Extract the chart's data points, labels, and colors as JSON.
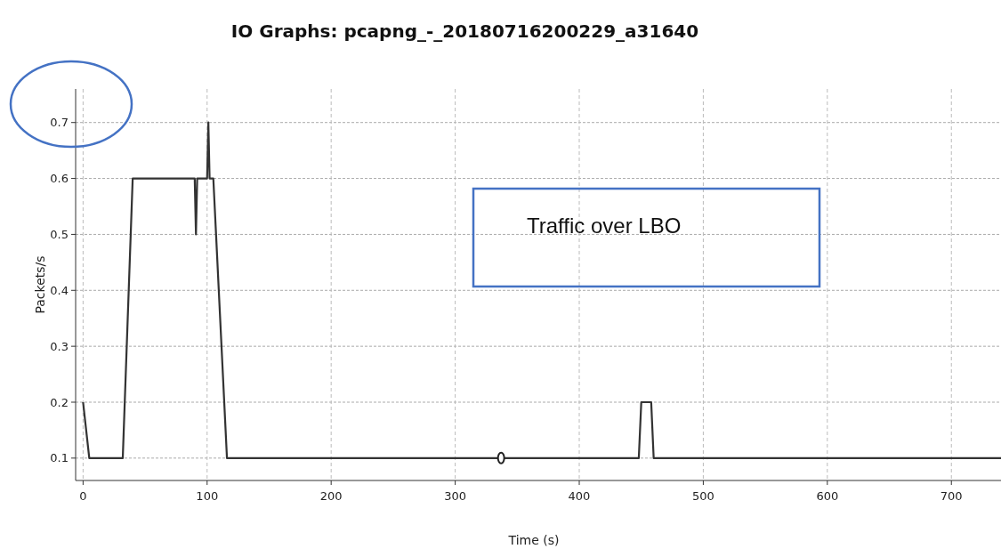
{
  "chart_data": {
    "type": "line",
    "title": "IO Graphs: pcapng_-_20180716200229_a31640",
    "xlabel": "Time (s)",
    "ylabel": "Packets/s",
    "x": [
      0,
      5,
      32,
      40,
      90,
      91,
      92,
      100,
      101,
      102,
      105,
      116,
      448,
      450,
      458,
      460,
      740
    ],
    "series": [
      {
        "color": "#333333",
        "values": [
          0.2,
          0.1,
          0.1,
          0.6,
          0.6,
          0.5,
          0.6,
          0.6,
          0.7,
          0.6,
          0.6,
          0.1,
          0.1,
          0.2,
          0.2,
          0.1,
          0.1
        ]
      }
    ],
    "xlim": [
      -6,
      740
    ],
    "xticks": [
      0,
      100,
      200,
      300,
      400,
      500,
      600,
      700
    ],
    "ylim": [
      0.06,
      0.76
    ],
    "yticks": [
      0.1,
      0.2,
      0.3,
      0.4,
      0.5,
      0.6,
      0.7
    ],
    "grid": true,
    "marker": "none",
    "line_style": "solid",
    "annotations": [
      "Traffic over LBO"
    ]
  }
}
